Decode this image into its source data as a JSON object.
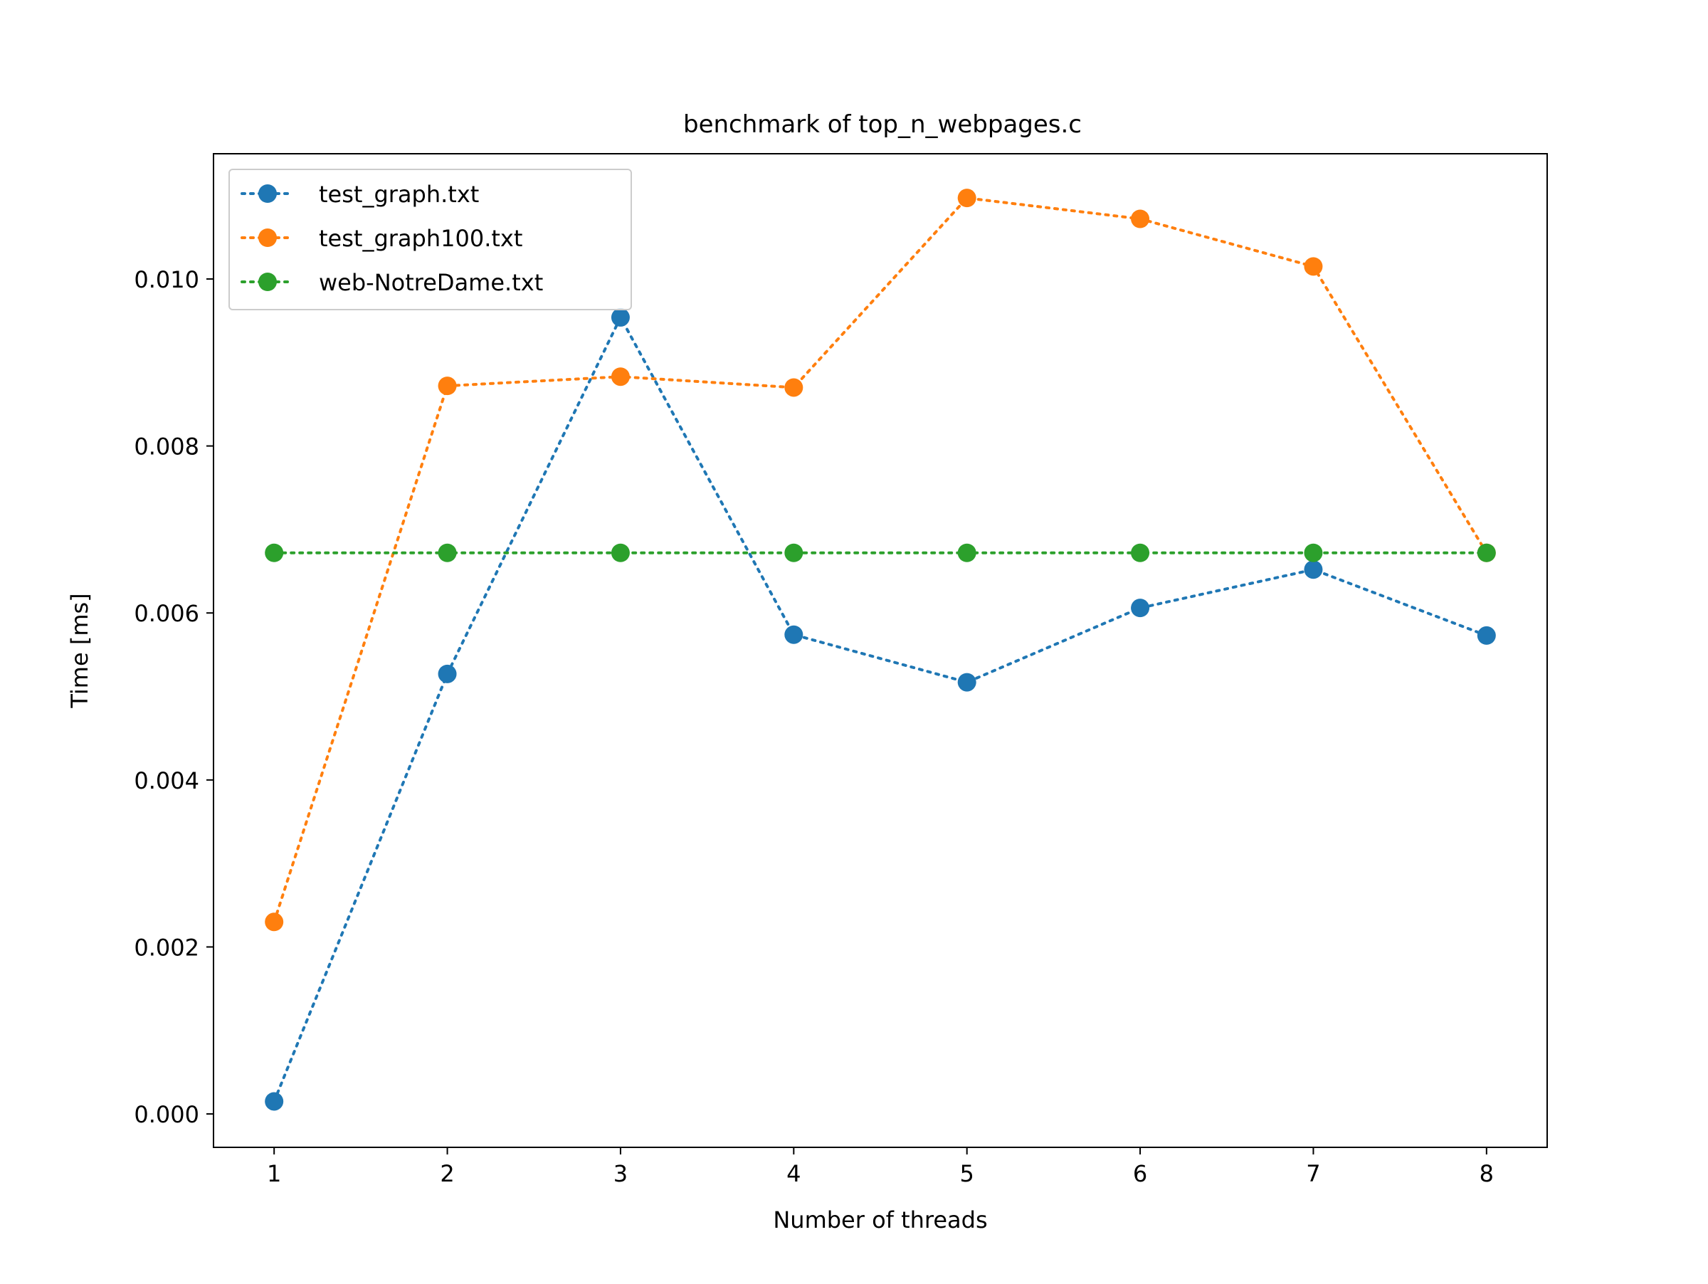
{
  "chart_data": {
    "type": "line",
    "title": "benchmark of top_n_webpages.c",
    "xlabel": "Number of threads",
    "ylabel": "Time [ms]",
    "x": [
      1,
      2,
      3,
      4,
      5,
      6,
      7,
      8
    ],
    "xlim": [
      0.65,
      8.35
    ],
    "ylim": [
      -0.0004,
      0.0115
    ],
    "xticks": [
      1,
      2,
      3,
      4,
      5,
      6,
      7,
      8
    ],
    "xtick_labels": [
      "1",
      "2",
      "3",
      "4",
      "5",
      "6",
      "7",
      "8"
    ],
    "yticks": [
      0.0,
      0.002,
      0.004,
      0.006,
      0.008,
      0.01
    ],
    "ytick_labels": [
      "0.000",
      "0.002",
      "0.004",
      "0.006",
      "0.008",
      "0.010"
    ],
    "grid": false,
    "legend_position": "top-left",
    "line_style": "dotted",
    "marker": "circle",
    "series": [
      {
        "name": "test_graph.txt",
        "color": "#1f77b4",
        "values": [
          0.00015,
          0.00527,
          0.00954,
          0.00574,
          0.00517,
          0.00606,
          0.00652,
          0.00573
        ]
      },
      {
        "name": "test_graph100.txt",
        "color": "#ff7f0e",
        "values": [
          0.0023,
          0.00872,
          0.00883,
          0.0087,
          0.01097,
          0.01072,
          0.01015,
          0.00672
        ]
      },
      {
        "name": "web-NotreDame.txt",
        "color": "#2ca02c",
        "values": [
          0.00672,
          0.00672,
          0.00672,
          0.00672,
          0.00672,
          0.00672,
          0.00672,
          0.00672
        ]
      }
    ]
  }
}
